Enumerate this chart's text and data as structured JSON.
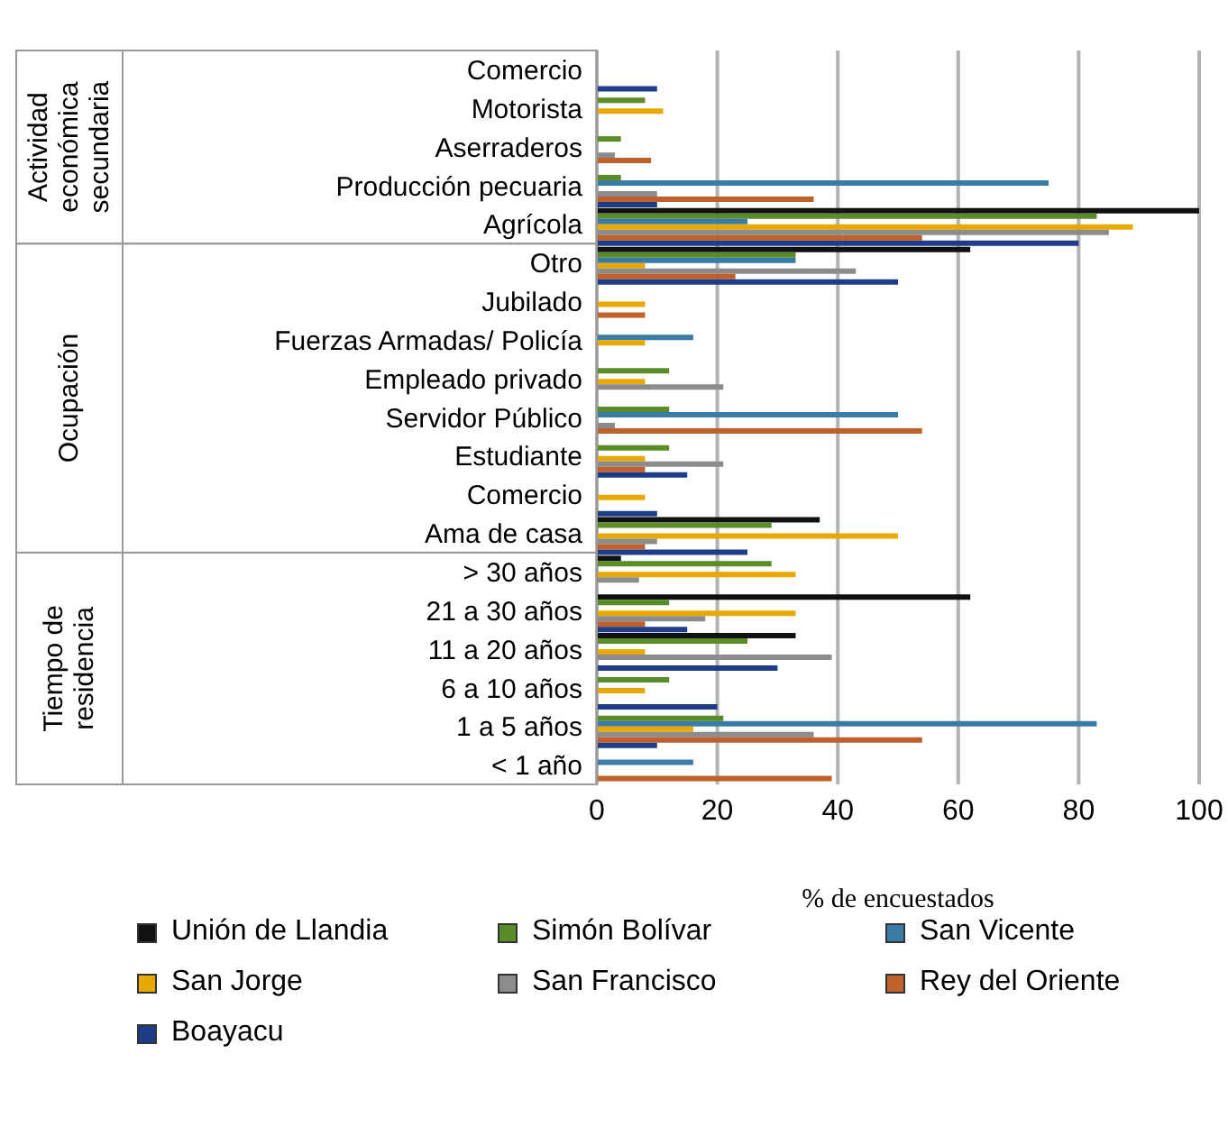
{
  "chart_data": {
    "type": "bar",
    "orientation": "horizontal",
    "xlabel": "% de encuestados",
    "categories": [
      "Comercio",
      "Motorista",
      "Aserraderos",
      "Producción pecuaria",
      "Agrícola",
      "Otro",
      "Jubilado",
      "Fuerzas Armadas/ Policía",
      "Empleado privado",
      "Servidor Público",
      "Estudiante",
      "Comercio",
      "Ama de casa",
      "> 30 años",
      "21 a 30 años",
      "11 a 20 años",
      "6 a 10 años",
      "1 a 5 años",
      "< 1 año"
    ],
    "series": [
      {
        "name": "Unión de Llandia",
        "color": "#111111",
        "values": [
          null,
          null,
          null,
          null,
          100,
          62,
          null,
          null,
          null,
          null,
          null,
          null,
          37,
          4,
          62,
          33,
          null,
          null,
          null
        ]
      },
      {
        "name": "Simón Bolívar",
        "color": "#5b8c2a",
        "values": [
          null,
          8,
          4,
          4,
          83,
          33,
          null,
          null,
          12,
          12,
          12,
          null,
          29,
          29,
          12,
          25,
          12,
          21,
          null
        ]
      },
      {
        "name": "San Vicente",
        "color": "#3a7ca5",
        "values": [
          null,
          null,
          null,
          75,
          25,
          33,
          null,
          16,
          null,
          50,
          null,
          null,
          null,
          null,
          null,
          null,
          null,
          83,
          16
        ]
      },
      {
        "name": "San Jorge",
        "color": "#e8a800",
        "values": [
          null,
          11,
          null,
          null,
          89,
          8,
          8,
          8,
          8,
          null,
          8,
          8,
          50,
          33,
          33,
          8,
          8,
          16,
          null
        ]
      },
      {
        "name": "San Francisco",
        "color": "#8c8c8c",
        "values": [
          null,
          null,
          3,
          10,
          85,
          43,
          null,
          null,
          21,
          3,
          21,
          null,
          10,
          7,
          18,
          39,
          null,
          36,
          null
        ]
      },
      {
        "name": "Rey del Oriente",
        "color": "#c0602a",
        "values": [
          null,
          null,
          9,
          36,
          54,
          23,
          8,
          null,
          null,
          54,
          8,
          null,
          8,
          null,
          8,
          null,
          null,
          54,
          39
        ]
      },
      {
        "name": "Boayacu",
        "color": "#1f3c88",
        "values": [
          10,
          null,
          null,
          10,
          80,
          50,
          null,
          null,
          null,
          null,
          15,
          10,
          25,
          null,
          15,
          30,
          20,
          10,
          null
        ]
      }
    ],
    "xlim": [
      0,
      100
    ],
    "xticks": [
      0,
      20,
      40,
      60,
      80,
      100
    ],
    "grid": "x",
    "legend": "bottom",
    "annotations": [
      "Actividad económica secundaria",
      "Ocupación",
      "Tiempo de residencia"
    ]
  }
}
